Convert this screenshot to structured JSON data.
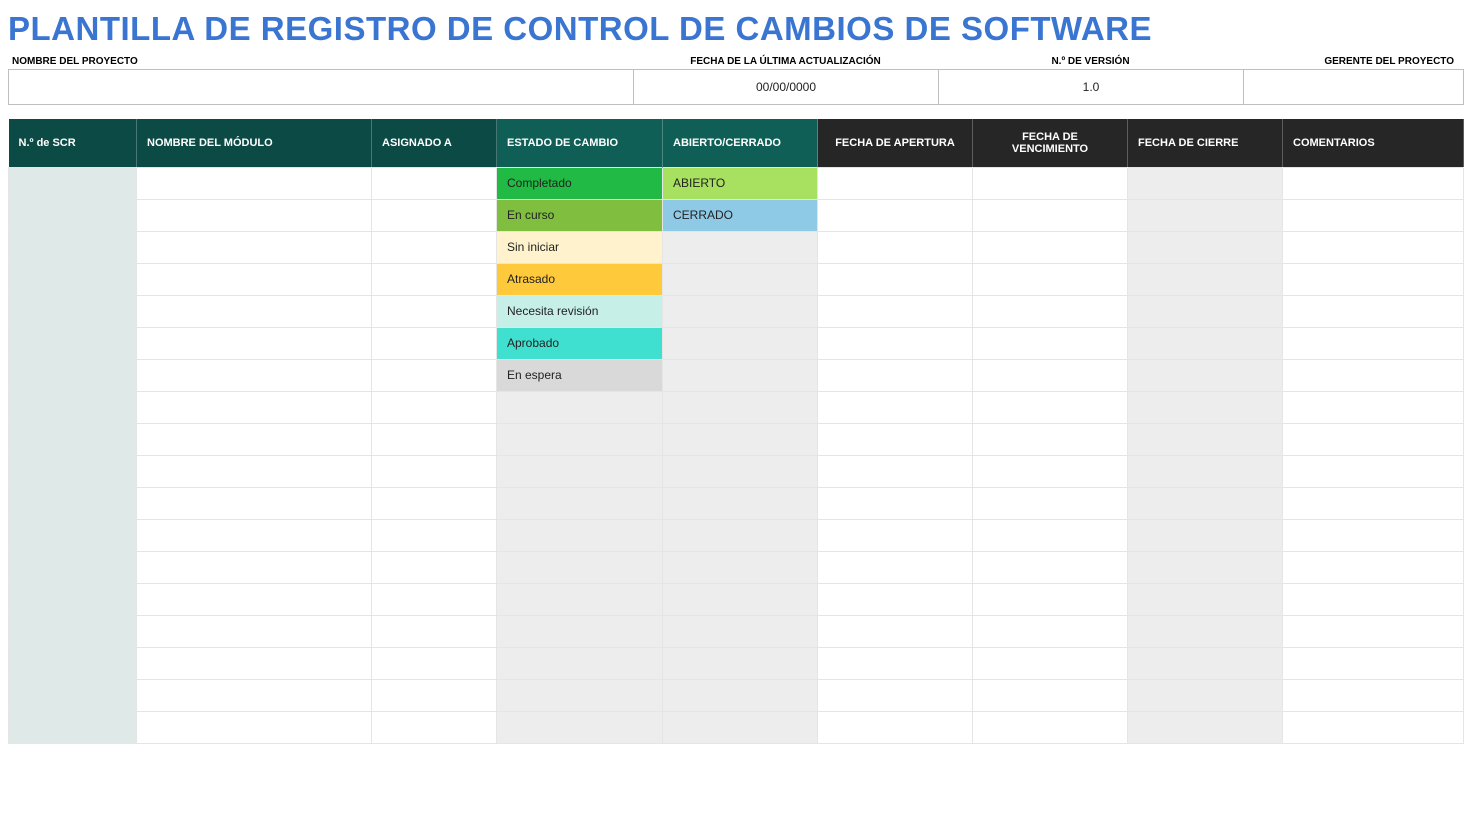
{
  "title": "PLANTILLA DE REGISTRO DE CONTROL DE CAMBIOS DE SOFTWARE",
  "meta_labels": {
    "project": "NOMBRE DEL PROYECTO",
    "date": "FECHA DE LA ÚLTIMA ACTUALIZACIÓN",
    "version": "N.º DE VERSIÓN",
    "manager": "GERENTE DEL PROYECTO"
  },
  "meta_values": {
    "project": "",
    "date": "00/00/0000",
    "version": "1.0",
    "manager": ""
  },
  "columns": [
    {
      "label": "N.º de SCR",
      "bg": "#0c4a45",
      "align": "left"
    },
    {
      "label": "NOMBRE DEL MÓDULO",
      "bg": "#0c4a45",
      "align": "left"
    },
    {
      "label": "ASIGNADO A",
      "bg": "#0c4a45",
      "align": "left"
    },
    {
      "label": "ESTADO DE CAMBIO",
      "bg": "#105f56",
      "align": "left"
    },
    {
      "label": "ABIERTO/CERRADO",
      "bg": "#105f56",
      "align": "left"
    },
    {
      "label": "FECHA DE APERTURA",
      "bg": "#262626",
      "align": "center"
    },
    {
      "label": "FECHA DE VENCIMIENTO",
      "bg": "#262626",
      "align": "center"
    },
    {
      "label": "FECHA DE CIERRE",
      "bg": "#262626",
      "align": "left"
    },
    {
      "label": "COMENTARIOS",
      "bg": "#262626",
      "align": "left"
    }
  ],
  "scr_col_bg": "#dfeae8",
  "shade_bg": "#ededed",
  "white_bg": "#ffffff",
  "status_options": [
    {
      "label": "Completado",
      "bg": "#21ba45"
    },
    {
      "label": "En curso",
      "bg": "#7fbe3f"
    },
    {
      "label": "Sin iniciar",
      "bg": "#fff2cc"
    },
    {
      "label": "Atrasado",
      "bg": "#ffc93c"
    },
    {
      "label": "Necesita revisión",
      "bg": "#c6efe8"
    },
    {
      "label": "Aprobado",
      "bg": "#40e0d0"
    },
    {
      "label": "En espera",
      "bg": "#d9d9d9"
    }
  ],
  "open_closed_options": [
    {
      "label": "ABIERTO",
      "bg": "#a8e05f"
    },
    {
      "label": "CERRADO",
      "bg": "#8ecae6"
    }
  ],
  "total_rows": 18
}
